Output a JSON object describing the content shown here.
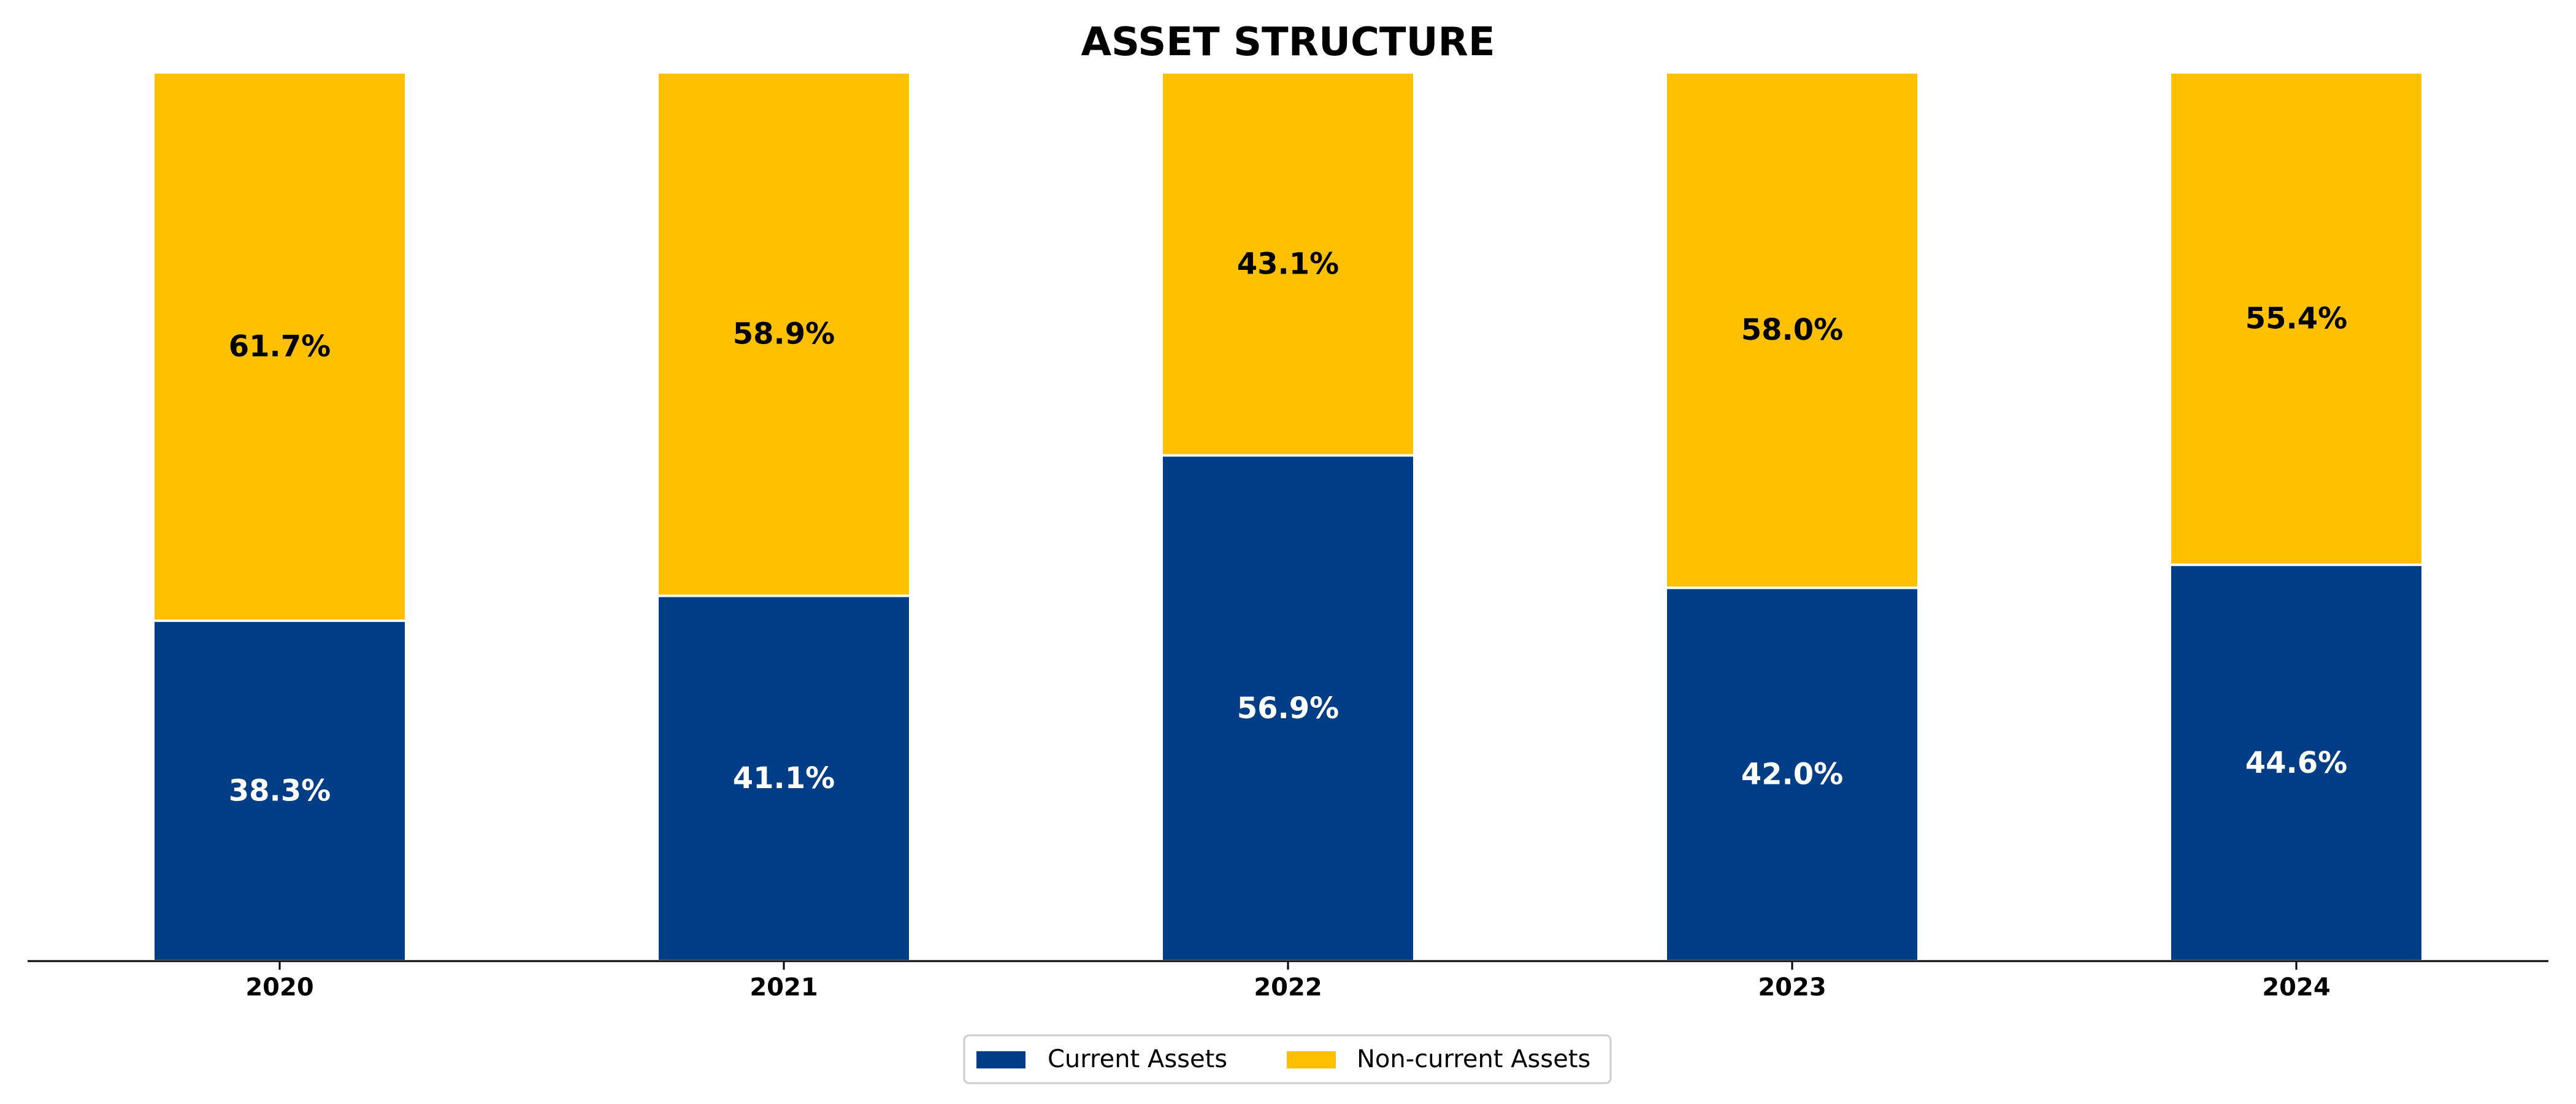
{
  "chart_data": {
    "type": "bar",
    "stacked": true,
    "title": "ASSET STRUCTURE",
    "xlabel": "",
    "ylabel": "",
    "categories": [
      "2020",
      "2021",
      "2022",
      "2023",
      "2024"
    ],
    "series": [
      {
        "name": "Current Assets",
        "values": [
          38.3,
          41.1,
          56.9,
          42.0,
          44.6
        ],
        "labels": [
          "38.3%",
          "41.1%",
          "56.9%",
          "42.0%",
          "44.6%"
        ],
        "color": "#003d87",
        "label_color": "#ffffff"
      },
      {
        "name": "Non-current Assets",
        "values": [
          61.7,
          58.9,
          43.1,
          58.0,
          55.4
        ],
        "labels": [
          "61.7%",
          "58.9%",
          "43.1%",
          "58.0%",
          "55.4%"
        ],
        "color": "#ffc000",
        "label_color": "#000000"
      }
    ],
    "ylim": [
      0,
      100
    ],
    "grid": false,
    "legend_position": "bottom-center",
    "legend_frame": true,
    "axis_color": "#000000",
    "bar_edge_color": "#ffffff"
  }
}
